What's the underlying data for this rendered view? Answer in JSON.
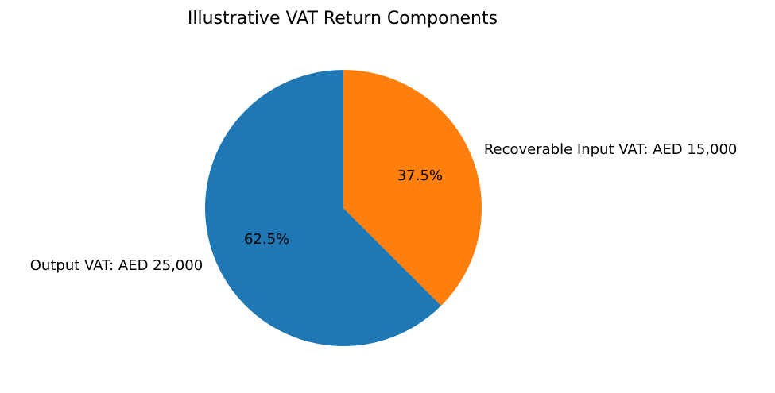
{
  "chart_data": {
    "type": "pie",
    "title": "Illustrative VAT Return Components",
    "categories": [
      "Output VAT: AED 25,000",
      "Recoverable Input VAT: AED 15,000"
    ],
    "values": [
      62.5,
      37.5
    ],
    "value_labels": [
      "62.5%",
      "37.5%"
    ],
    "colors": [
      "#1f77b4",
      "#ff7f0e"
    ]
  }
}
